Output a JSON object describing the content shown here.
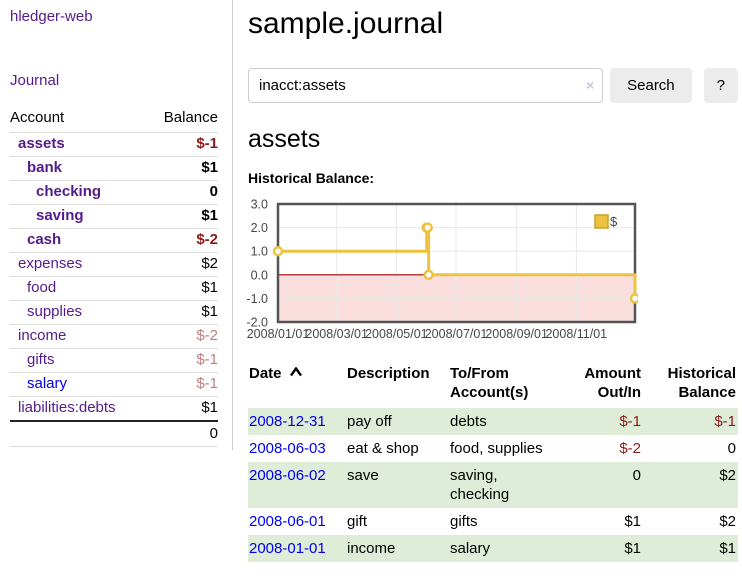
{
  "app": {
    "brand": "hledger-web",
    "nav_journal": "Journal"
  },
  "sidebar": {
    "col_account": "Account",
    "col_balance": "Balance",
    "accounts": [
      {
        "name": "assets",
        "indent": 1,
        "bold": true,
        "balance": "$-1"
      },
      {
        "name": "bank",
        "indent": 2,
        "bold": true,
        "balance": "$1"
      },
      {
        "name": "checking",
        "indent": 3,
        "bold": true,
        "balance": "0"
      },
      {
        "name": "saving",
        "indent": 3,
        "bold": true,
        "balance": "$1"
      },
      {
        "name": "cash",
        "indent": 2,
        "bold": true,
        "balance": "$-2"
      },
      {
        "name": "expenses",
        "indent": 1,
        "bold": false,
        "balance": "$2"
      },
      {
        "name": "food",
        "indent": 2,
        "bold": false,
        "balance": "$1"
      },
      {
        "name": "supplies",
        "indent": 2,
        "bold": false,
        "balance": "$1"
      },
      {
        "name": "income",
        "indent": 1,
        "bold": false,
        "balance": "$-2"
      },
      {
        "name": "gifts",
        "indent": 2,
        "bold": false,
        "balance": "$-1"
      },
      {
        "name": "salary",
        "indent": 2,
        "bold": false,
        "balance": "$-1",
        "variant": "blue"
      },
      {
        "name": "liabilities:debts",
        "indent": 1,
        "bold": false,
        "balance": "$1"
      }
    ],
    "total": "0"
  },
  "header": {
    "title": "sample.journal"
  },
  "search": {
    "value": "inacct:assets",
    "clear_icon": "×",
    "button": "Search",
    "help_button": "?"
  },
  "account_page": {
    "title": "assets",
    "chart_label": "Historical Balance:"
  },
  "chart_data": {
    "type": "line",
    "step": true,
    "title": "Historical Balance",
    "series": [
      {
        "name": "$",
        "color": "#EDC240",
        "points": [
          [
            "2008-01-01",
            1
          ],
          [
            "2008-06-01",
            2
          ],
          [
            "2008-06-02",
            2
          ],
          [
            "2008-06-03",
            0
          ],
          [
            "2008-12-31",
            -1
          ]
        ]
      }
    ],
    "x_start": "2008-01-01",
    "x_end": "2008-12-31",
    "x_ticks": [
      {
        "label": "2008/01/01",
        "date": "2008-01-01"
      },
      {
        "label": "2008/03/01",
        "date": "2008-03-01"
      },
      {
        "label": "2008/05/01",
        "date": "2008-05-01"
      },
      {
        "label": "2008/07/01",
        "date": "2008-07-01"
      },
      {
        "label": "2008/09/01",
        "date": "2008-09-01"
      },
      {
        "label": "2008/11/01",
        "date": "2008-11-01"
      }
    ],
    "y_ticks": [
      {
        "label": "3.0",
        "value": 3
      },
      {
        "label": "2.0",
        "value": 2
      },
      {
        "label": "1.0",
        "value": 1
      },
      {
        "label": "0.0",
        "value": 0
      },
      {
        "label": "-1.0",
        "value": -1
      },
      {
        "label": "-2.0",
        "value": -2
      }
    ],
    "ylim": [
      -2,
      3
    ],
    "grid": true,
    "legend": {
      "position": "top-right",
      "label": "$"
    },
    "colors": {
      "grid": "#e8e8e8",
      "border": "#545454",
      "negative_fill": "#fbdfdf",
      "zero_line": "#a40000",
      "tick_text": "#474747"
    }
  },
  "register": {
    "columns": {
      "date": "Date",
      "description": "Description",
      "accounts": "To/From\nAccount(s)",
      "amount": "Amount\nOut/In",
      "balance": "Historical\nBalance"
    },
    "rows": [
      {
        "date": "2008-12-31",
        "description": "pay off",
        "accounts": "debts",
        "amount": "$-1",
        "balance": "$-1"
      },
      {
        "date": "2008-06-03",
        "description": "eat & shop",
        "accounts": "food, supplies",
        "amount": "$-2",
        "balance": "0"
      },
      {
        "date": "2008-06-02",
        "description": "save",
        "accounts": "saving, checking",
        "amount": "0",
        "balance": "$2"
      },
      {
        "date": "2008-06-01",
        "description": "gift",
        "accounts": "gifts",
        "amount": "$1",
        "balance": "$2"
      },
      {
        "date": "2008-01-01",
        "description": "income",
        "accounts": "salary",
        "amount": "$1",
        "balance": "$1"
      }
    ]
  }
}
